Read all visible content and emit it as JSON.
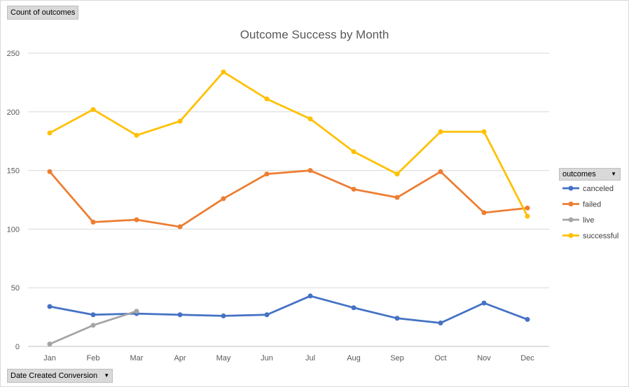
{
  "field_buttons": {
    "values_field": "Count of outcomes",
    "axis_field": "Date Created Conversion",
    "legend_field": "outcomes"
  },
  "chart_data": {
    "type": "line",
    "title": "Outcome Success by Month",
    "xlabel": "",
    "ylabel": "",
    "ylim": [
      0,
      250
    ],
    "yticks": [
      0,
      50,
      100,
      150,
      200,
      250
    ],
    "grid": true,
    "legend_position": "right",
    "categories": [
      "Jan",
      "Feb",
      "Mar",
      "Apr",
      "May",
      "Jun",
      "Jul",
      "Aug",
      "Sep",
      "Oct",
      "Nov",
      "Dec"
    ],
    "series": [
      {
        "name": "canceled",
        "color": "#4472c4",
        "values": [
          34,
          27,
          28,
          27,
          26,
          27,
          43,
          33,
          24,
          20,
          37,
          23
        ]
      },
      {
        "name": "failed",
        "color": "#ed7d31",
        "values": [
          149,
          106,
          108,
          102,
          126,
          147,
          150,
          134,
          127,
          149,
          114,
          118
        ]
      },
      {
        "name": "live",
        "color": "#a5a5a5",
        "values": [
          2,
          18,
          30,
          null,
          null,
          null,
          null,
          null,
          null,
          null,
          null,
          null
        ]
      },
      {
        "name": "successful",
        "color": "#ffc000",
        "values": [
          182,
          202,
          180,
          192,
          234,
          211,
          194,
          166,
          147,
          183,
          183,
          111
        ]
      }
    ]
  }
}
